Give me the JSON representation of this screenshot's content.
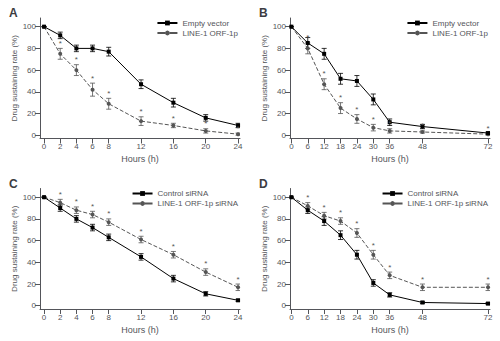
{
  "chart_data": [
    {
      "type": "line",
      "title": "A",
      "xlabel": "Hours (h)",
      "ylabel": "Drug sustaining rate (%)",
      "x": [
        0,
        2,
        4,
        6,
        8,
        12,
        16,
        20,
        24
      ],
      "xlim": [
        -0.5,
        24.24
      ],
      "xticks": [
        0,
        2,
        4,
        6,
        8,
        12,
        16,
        20,
        24
      ],
      "ylim": [
        -3,
        108
      ],
      "yticks": [
        0,
        20,
        40,
        60,
        80,
        100
      ],
      "grid": false,
      "legend": "upper right",
      "series": [
        {
          "name": "Empty vector",
          "color": "#000000",
          "marker": "square",
          "line_style": "solid",
          "values": [
            100,
            92,
            80,
            80,
            77,
            47,
            30,
            16,
            9
          ],
          "errors": [
            0,
            3,
            3,
            3,
            4,
            4,
            4,
            3,
            2
          ]
        },
        {
          "name": "LINE-1 ORF-1p",
          "color": "#555555",
          "marker": "circle",
          "line_style": "dashed",
          "values": [
            100,
            75,
            60,
            42,
            29,
            13,
            9,
            4,
            1
          ],
          "errors": [
            0,
            5,
            5,
            6,
            5,
            4,
            2,
            2,
            1
          ]
        }
      ],
      "annotations": [
        {
          "text": "*",
          "x": 2,
          "series": "LINE-1 ORF-1p"
        },
        {
          "text": "*",
          "x": 4,
          "series": "LINE-1 ORF-1p"
        },
        {
          "text": "*",
          "x": 6,
          "series": "LINE-1 ORF-1p"
        },
        {
          "text": "*",
          "x": 8,
          "series": "LINE-1 ORF-1p"
        },
        {
          "text": "*",
          "x": 12,
          "series": "LINE-1 ORF-1p"
        },
        {
          "text": "*",
          "x": 16,
          "series": "LINE-1 ORF-1p"
        },
        {
          "text": "*",
          "x": 20,
          "series": "LINE-1 ORF-1p"
        },
        {
          "text": "*",
          "x": 24,
          "series": "LINE-1 ORF-1p"
        }
      ]
    },
    {
      "type": "line",
      "title": "B",
      "xlabel": "Hours (h)",
      "ylabel": "Drug sustaining rate (%)",
      "x": [
        0,
        6,
        12,
        18,
        24,
        30,
        36,
        48,
        72
      ],
      "xlim": [
        -0.5,
        72.72
      ],
      "xticks": [
        0,
        6,
        12,
        18,
        24,
        30,
        36,
        48,
        72
      ],
      "ylim": [
        -3,
        108
      ],
      "yticks": [
        0,
        20,
        40,
        60,
        80,
        100
      ],
      "grid": false,
      "legend": "upper right",
      "series": [
        {
          "name": "Empty vector",
          "color": "#000000",
          "marker": "square",
          "line_style": "solid",
          "values": [
            100,
            85,
            75,
            52,
            50,
            33,
            12,
            8,
            2
          ],
          "errors": [
            0,
            5,
            5,
            5,
            5,
            5,
            3,
            2,
            1
          ]
        },
        {
          "name": "LINE-1 ORF-1p",
          "color": "#555555",
          "marker": "circle",
          "line_style": "dashed",
          "values": [
            100,
            80,
            47,
            25,
            15,
            7,
            4,
            3,
            1
          ],
          "errors": [
            0,
            5,
            5,
            5,
            4,
            3,
            2,
            1,
            1
          ]
        }
      ],
      "annotations": [
        {
          "text": "*",
          "x": 6,
          "series": "LINE-1 ORF-1p"
        },
        {
          "text": "*",
          "x": 12,
          "series": "LINE-1 ORF-1p"
        },
        {
          "text": "*",
          "x": 18,
          "series": "LINE-1 ORF-1p"
        },
        {
          "text": "*",
          "x": 24,
          "series": "LINE-1 ORF-1p"
        },
        {
          "text": "*",
          "x": 30,
          "series": "LINE-1 ORF-1p"
        },
        {
          "text": "*",
          "x": 36,
          "series": "LINE-1 ORF-1p"
        },
        {
          "text": "*",
          "x": 48,
          "series": "LINE-1 ORF-1p"
        },
        {
          "text": "*",
          "x": 72,
          "series": "LINE-1 ORF-1p"
        }
      ]
    },
    {
      "type": "line",
      "title": "C",
      "xlabel": "Hours (h)",
      "ylabel": "Drug sustaining rate (%)",
      "x": [
        0,
        2,
        4,
        6,
        8,
        12,
        16,
        20,
        24
      ],
      "xlim": [
        -0.5,
        24.24
      ],
      "xticks": [
        0,
        2,
        4,
        6,
        8,
        12,
        16,
        20,
        24
      ],
      "ylim": [
        -3,
        108
      ],
      "yticks": [
        0,
        20,
        40,
        60,
        80,
        100
      ],
      "grid": false,
      "legend": "upper right",
      "series": [
        {
          "name": "Control siRNA",
          "color": "#000000",
          "marker": "square",
          "line_style": "solid",
          "values": [
            100,
            90,
            80,
            72,
            63,
            45,
            25,
            11,
            5
          ],
          "errors": [
            0,
            3,
            3,
            3,
            3,
            3,
            3,
            2,
            1
          ]
        },
        {
          "name": "LINE-1 ORF-1p siRNA",
          "color": "#555555",
          "marker": "circle",
          "line_style": "dashed",
          "values": [
            100,
            95,
            88,
            84,
            77,
            61,
            47,
            31,
            17
          ],
          "errors": [
            0,
            3,
            3,
            3,
            3,
            3,
            3,
            3,
            3
          ]
        }
      ],
      "annotations": [
        {
          "text": "*",
          "x": 2,
          "series": "LINE-1 ORF-1p siRNA"
        },
        {
          "text": "*",
          "x": 4,
          "series": "LINE-1 ORF-1p siRNA"
        },
        {
          "text": "*",
          "x": 6,
          "series": "LINE-1 ORF-1p siRNA"
        },
        {
          "text": "*",
          "x": 8,
          "series": "LINE-1 ORF-1p siRNA"
        },
        {
          "text": "*",
          "x": 12,
          "series": "LINE-1 ORF-1p siRNA"
        },
        {
          "text": "*",
          "x": 16,
          "series": "LINE-1 ORF-1p siRNA"
        },
        {
          "text": "*",
          "x": 20,
          "series": "LINE-1 ORF-1p siRNA"
        },
        {
          "text": "*",
          "x": 24,
          "series": "LINE-1 ORF-1p siRNA"
        }
      ]
    },
    {
      "type": "line",
      "title": "D",
      "xlabel": "Hours (h)",
      "ylabel": "Drug sustaining rate (%)",
      "x": [
        0,
        6,
        12,
        18,
        24,
        30,
        36,
        48,
        72
      ],
      "xlim": [
        -0.5,
        72.72
      ],
      "xticks": [
        0,
        6,
        12,
        18,
        24,
        30,
        36,
        48,
        72
      ],
      "ylim": [
        -3,
        108
      ],
      "yticks": [
        0,
        20,
        40,
        60,
        80,
        100
      ],
      "grid": false,
      "legend": "upper right",
      "series": [
        {
          "name": "Control siRNA",
          "color": "#000000",
          "marker": "square",
          "line_style": "solid",
          "values": [
            100,
            88,
            78,
            65,
            47,
            21,
            10,
            3,
            2
          ],
          "errors": [
            0,
            3,
            4,
            4,
            4,
            3,
            2,
            1,
            1
          ]
        },
        {
          "name": "LINE-1 ORF-1p siRNA",
          "color": "#555555",
          "marker": "circle",
          "line_style": "dashed",
          "values": [
            100,
            92,
            83,
            78,
            67,
            47,
            28,
            17,
            17
          ],
          "errors": [
            0,
            3,
            3,
            3,
            4,
            4,
            3,
            3,
            3
          ]
        }
      ],
      "annotations": [
        {
          "text": "*",
          "x": 6,
          "series": "LINE-1 ORF-1p siRNA"
        },
        {
          "text": "*",
          "x": 12,
          "series": "LINE-1 ORF-1p siRNA"
        },
        {
          "text": "*",
          "x": 18,
          "series": "LINE-1 ORF-1p siRNA"
        },
        {
          "text": "*",
          "x": 24,
          "series": "LINE-1 ORF-1p siRNA"
        },
        {
          "text": "*",
          "x": 30,
          "series": "LINE-1 ORF-1p siRNA"
        },
        {
          "text": "*",
          "x": 36,
          "series": "LINE-1 ORF-1p siRNA"
        },
        {
          "text": "*",
          "x": 48,
          "series": "LINE-1 ORF-1p siRNA"
        },
        {
          "text": "*",
          "x": 72,
          "series": "LINE-1 ORF-1p siRNA"
        }
      ]
    }
  ]
}
